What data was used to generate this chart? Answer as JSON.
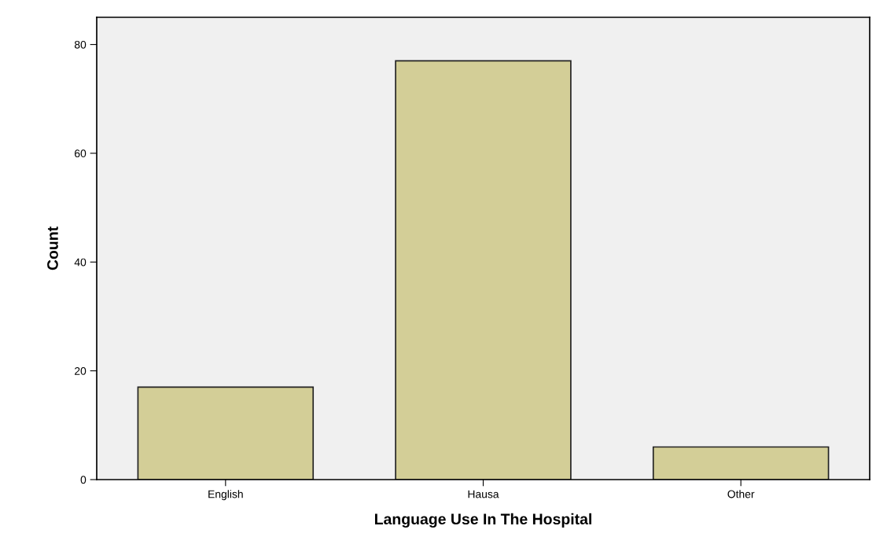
{
  "chart_data": {
    "type": "bar",
    "xlabel": "Language Use In The Hospital",
    "ylabel": "Count",
    "categories": [
      "English",
      "Hausa",
      "Other"
    ],
    "values": [
      17,
      77,
      6
    ],
    "color": "#d3ce97",
    "ylim": [
      0,
      85
    ],
    "yticks": [
      0,
      20,
      40,
      60,
      80
    ],
    "grid": false,
    "legend": false
  }
}
